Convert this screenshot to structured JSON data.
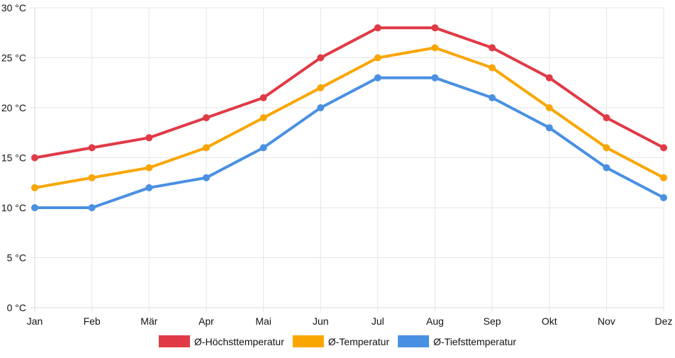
{
  "chart_data": {
    "type": "line",
    "title": "",
    "xlabel": "",
    "ylabel": "",
    "categories": [
      "Jan",
      "Feb",
      "Mär",
      "Apr",
      "Mai",
      "Jun",
      "Jul",
      "Aug",
      "Sep",
      "Okt",
      "Nov",
      "Dez"
    ],
    "y_ticks": [
      "0 °C",
      "5 °C",
      "10 °C",
      "15 °C",
      "20 °C",
      "25 °C",
      "30 °C"
    ],
    "ylim": [
      0,
      30
    ],
    "y_step": 5,
    "grid": true,
    "legend_position": "bottom",
    "series": [
      {
        "name": "Ø-Höchsttemperatur",
        "color": "#e03a46",
        "values": [
          15,
          16,
          17,
          19,
          21,
          25,
          28,
          28,
          26,
          23,
          19,
          16
        ]
      },
      {
        "name": "Ø-Temperatur",
        "color": "#f9a602",
        "values": [
          12,
          13,
          14,
          16,
          19,
          22,
          25,
          26,
          24,
          20,
          16,
          13
        ]
      },
      {
        "name": "Ø-Tiefsttemperatur",
        "color": "#4a90e2",
        "values": [
          10,
          10,
          12,
          13,
          16,
          20,
          23,
          23,
          21,
          18,
          14,
          11
        ]
      }
    ]
  }
}
